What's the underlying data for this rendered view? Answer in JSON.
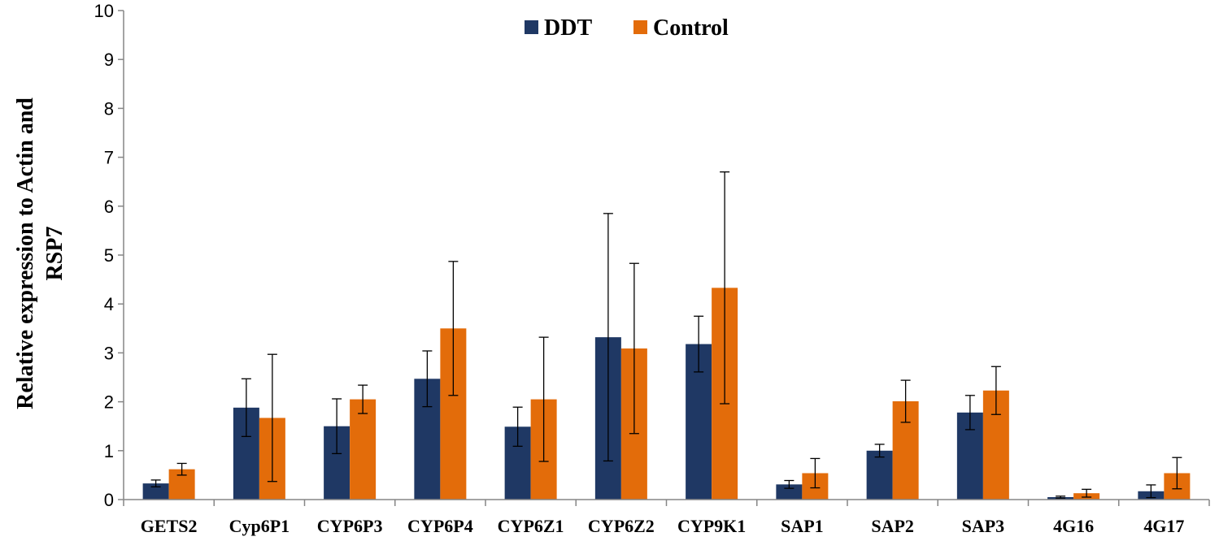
{
  "chart_data": {
    "type": "bar",
    "title": "",
    "xlabel": "",
    "ylabel_lines": [
      "Relative expression to Actin and",
      "RSP7"
    ],
    "ylim": [
      0,
      10
    ],
    "yticks": [
      "0",
      "1",
      "2",
      "3",
      "4",
      "5",
      "6",
      "7",
      "8",
      "9",
      "10"
    ],
    "categories": [
      "GETS2",
      "Cyp6P1",
      "CYP6P3",
      "CYP6P4",
      "CYP6Z1",
      "CYP6Z2",
      "CYP9K1",
      "SAP1",
      "SAP2",
      "SAP3",
      "4G16",
      "4G17"
    ],
    "legend_position": "top",
    "series": [
      {
        "name": "DDT",
        "color": "#1f3864",
        "values": [
          0.33,
          1.88,
          1.5,
          2.47,
          1.49,
          3.32,
          3.18,
          0.31,
          1.0,
          1.78,
          0.05,
          0.17
        ],
        "error": [
          0.07,
          0.59,
          0.56,
          0.57,
          0.4,
          2.53,
          0.57,
          0.08,
          0.13,
          0.35,
          0.02,
          0.13
        ]
      },
      {
        "name": "Control",
        "color": "#e36c0a",
        "values": [
          0.62,
          1.67,
          2.05,
          3.5,
          2.05,
          3.09,
          4.33,
          0.54,
          2.01,
          2.23,
          0.13,
          0.54
        ],
        "error": [
          0.12,
          1.3,
          0.29,
          1.37,
          1.27,
          1.74,
          2.37,
          0.3,
          0.43,
          0.49,
          0.08,
          0.32
        ]
      }
    ]
  }
}
